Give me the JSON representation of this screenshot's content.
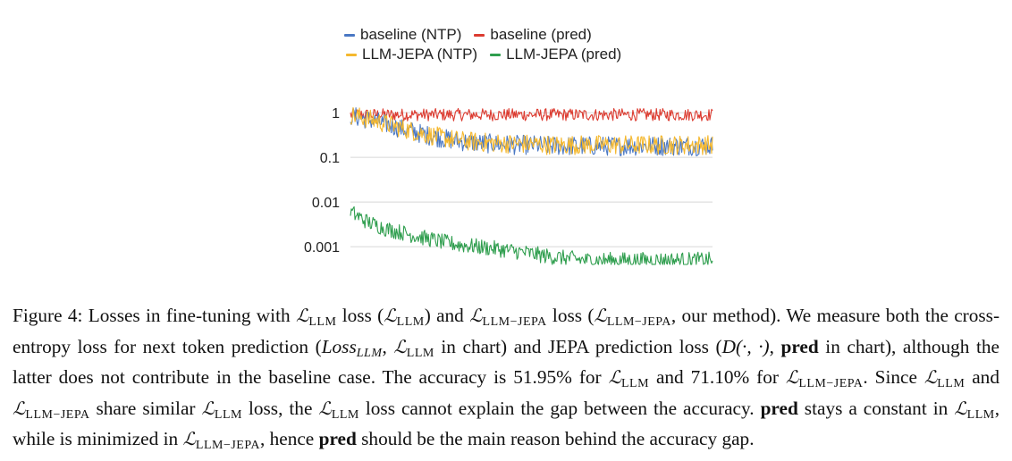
{
  "chart_data": {
    "type": "line",
    "yscale": "log",
    "ylim": [
      0.0004,
      4
    ],
    "yticks": [
      1,
      0.1,
      0.01,
      0.001
    ],
    "ytick_labels": [
      "1",
      "0.1",
      "0.01",
      "0.001"
    ],
    "grid": true,
    "legend_position": "top",
    "series": [
      {
        "name": "baseline (NTP)",
        "color": "#4a78c4",
        "values": [
          0.85,
          0.7,
          0.55,
          0.42,
          0.33,
          0.27,
          0.23,
          0.21,
          0.2,
          0.19,
          0.19,
          0.18,
          0.18,
          0.18,
          0.18,
          0.18,
          0.18,
          0.18,
          0.18,
          0.18,
          0.18
        ]
      },
      {
        "name": "baseline (pred)",
        "color": "#dc3b30",
        "values": [
          0.9,
          0.9,
          0.9,
          0.9,
          0.9,
          0.9,
          0.9,
          0.9,
          0.9,
          0.9,
          0.9,
          0.9,
          0.9,
          0.9,
          0.9,
          0.9,
          0.9,
          0.9,
          0.9,
          0.9,
          0.9
        ]
      },
      {
        "name": "LLM-JEPA (NTP)",
        "color": "#f5b82e",
        "values": [
          0.9,
          0.72,
          0.56,
          0.43,
          0.34,
          0.28,
          0.24,
          0.22,
          0.21,
          0.2,
          0.2,
          0.19,
          0.19,
          0.19,
          0.19,
          0.19,
          0.19,
          0.19,
          0.19,
          0.19,
          0.19
        ]
      },
      {
        "name": "LLM-JEPA (pred)",
        "color": "#2f9e4e",
        "values": [
          0.006,
          0.0035,
          0.0025,
          0.002,
          0.0016,
          0.0013,
          0.0011,
          0.001,
          0.0009,
          0.0008,
          0.0007,
          0.0006,
          0.00055,
          0.0005,
          0.0005,
          0.0005,
          0.0005,
          0.0005,
          0.0005,
          0.0005,
          0.0005
        ]
      }
    ]
  },
  "caption": {
    "label": "Figure 4:",
    "t1": "Losses in fine-tuning with",
    "L": "ℒ",
    "LLM": "LLM",
    "LLMJEPA": "LLM−JEPA",
    "t2": "loss (",
    "t3": ") and",
    "t4": "loss (",
    "t5": ", our method). We measure both the cross-entropy loss for next token prediction (",
    "loss_var": "Loss",
    "loss_sub": "LLM",
    "t6": ",",
    "t7": "in chart) and JEPA prediction loss (",
    "dfunc": "D(·, ·)",
    "t8": ",",
    "pred": "pred",
    "t9": "in chart), although the latter does not contribute in the baseline case. The accuracy is",
    "acc1": "51.95%",
    "t10": "for",
    "t11": "and",
    "acc2": "71.10%",
    "t12": "for",
    "t13": ". Since",
    "t14": "and",
    "t15": "share similar",
    "t16": "loss, the",
    "t17": "loss cannot explain the gap between the accuracy.",
    "t18": "stays a constant in",
    "t19": ", while is minimized in",
    "t20": ", hence",
    "t21": "should be the main reason behind the accuracy gap."
  }
}
